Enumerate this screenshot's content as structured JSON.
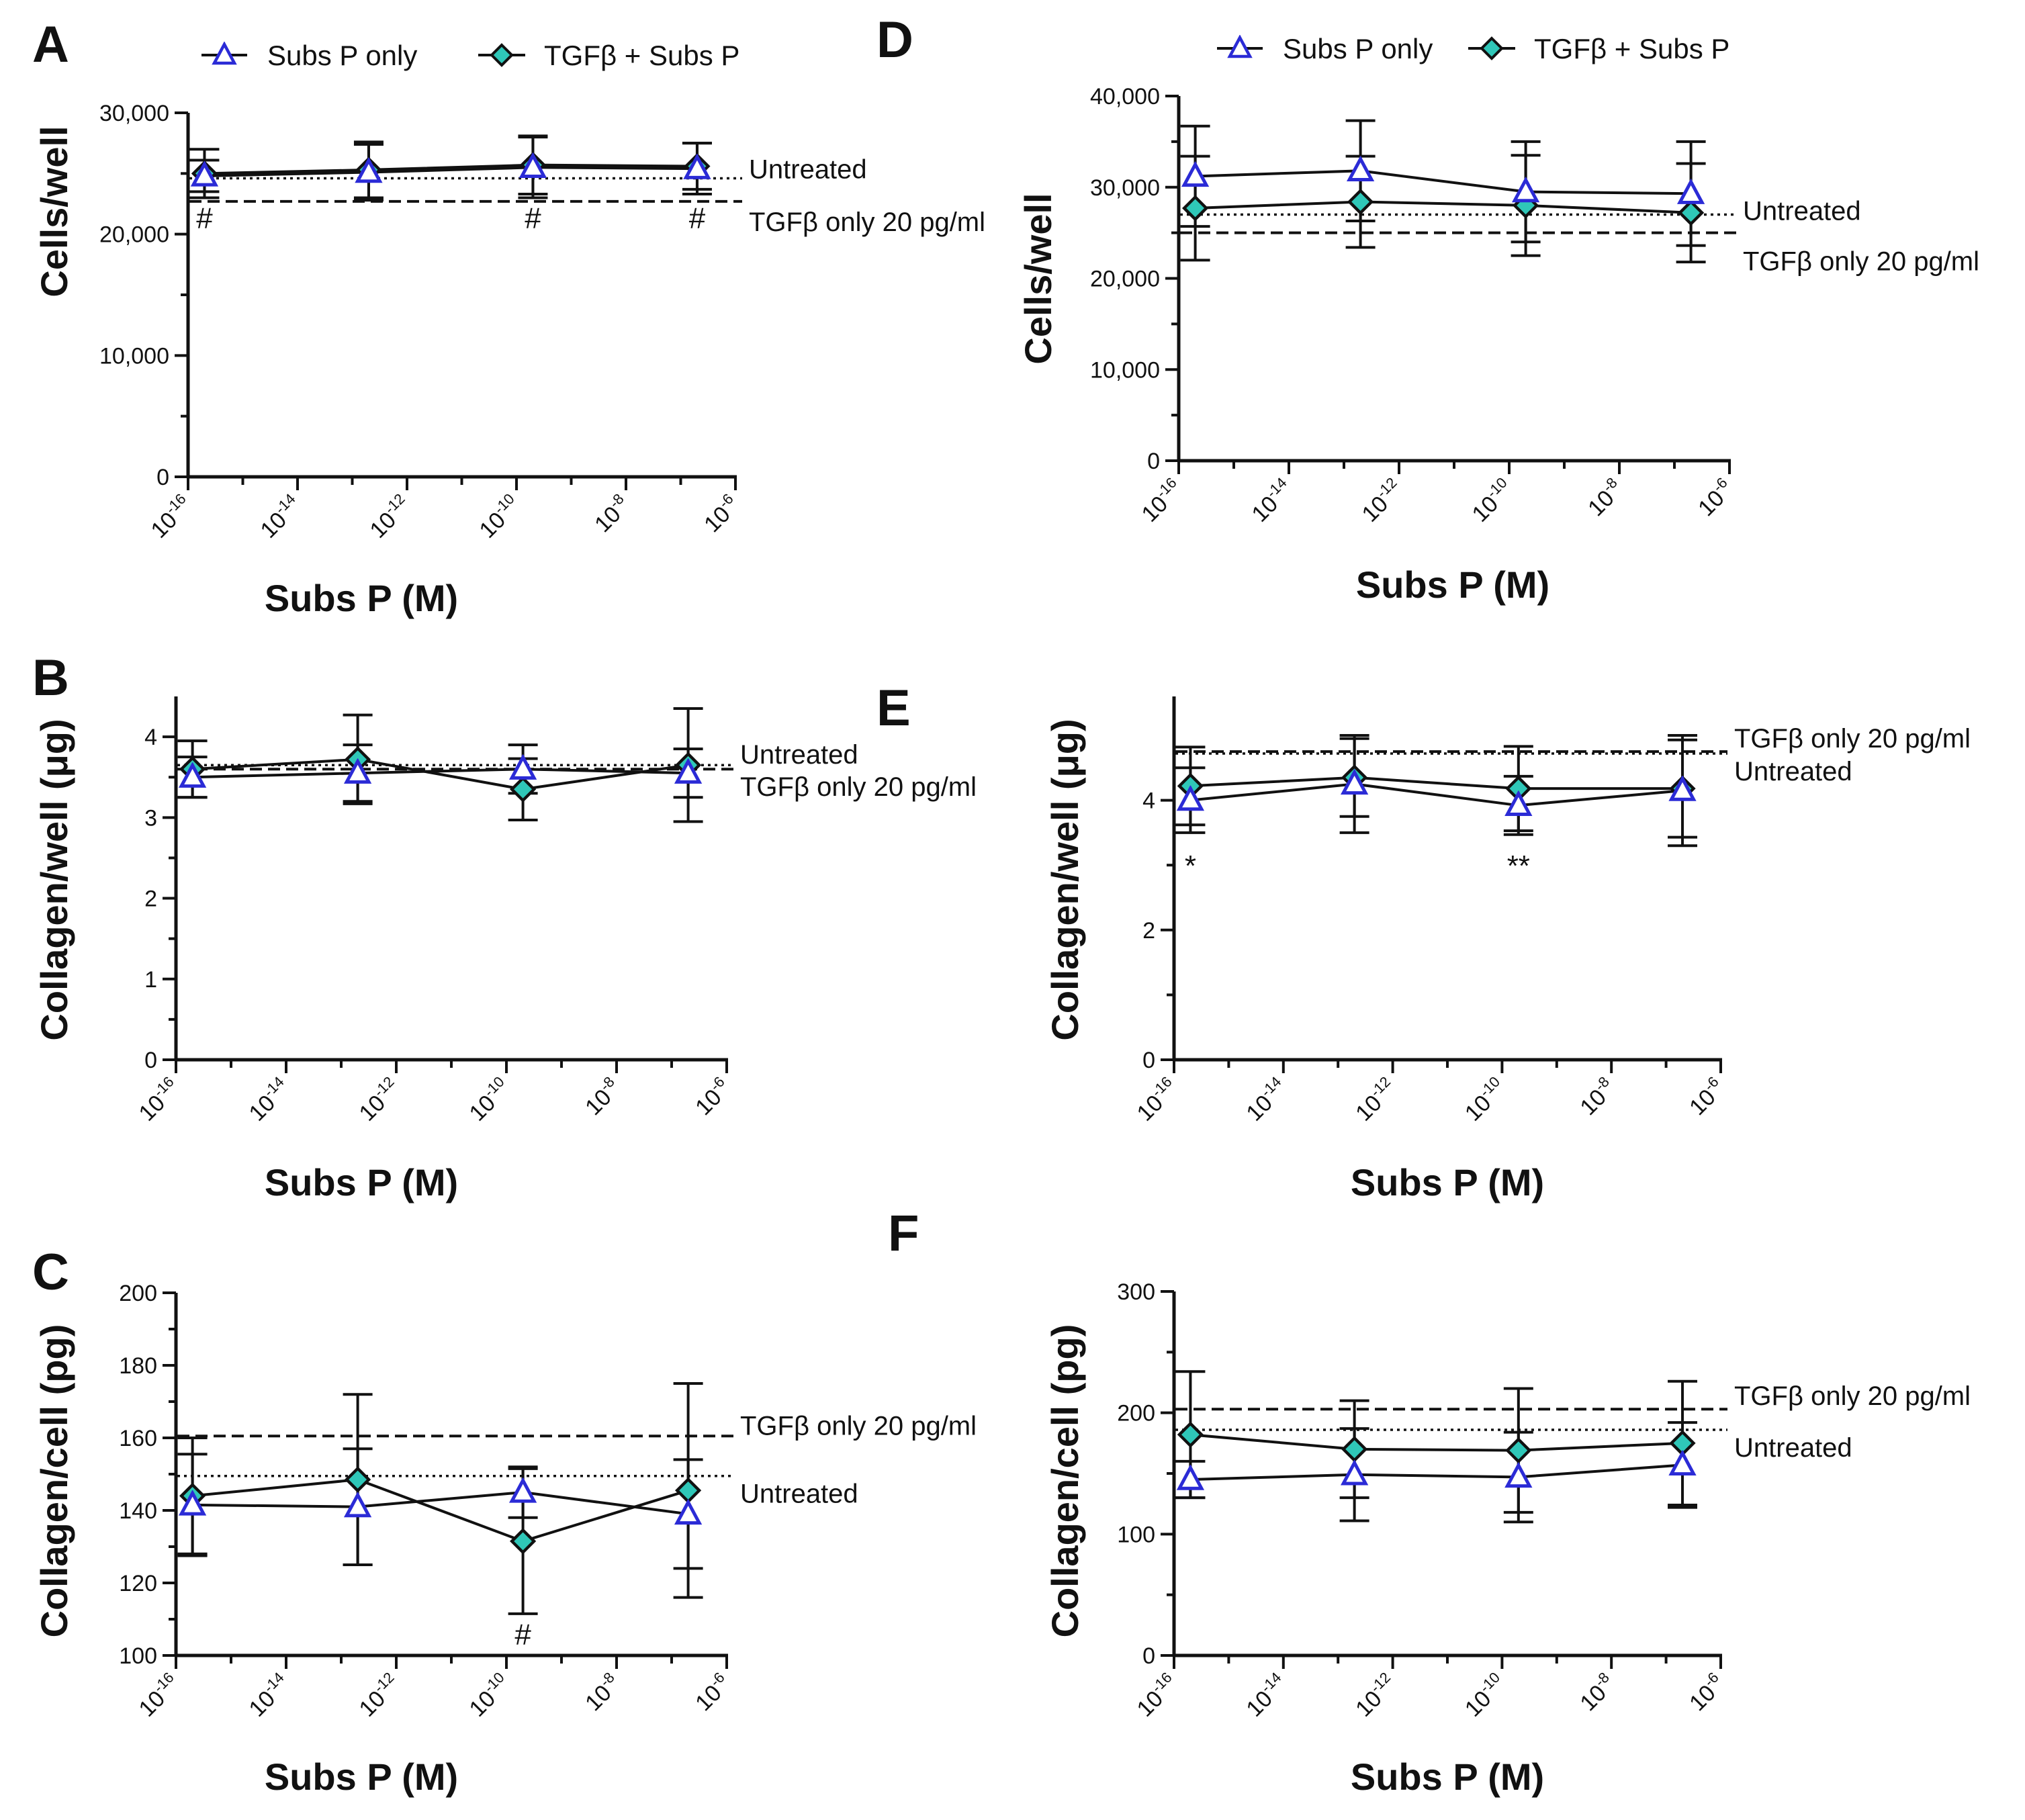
{
  "figure": {
    "legend": {
      "items": [
        {
          "label": "Subs P only",
          "marker": "triangle",
          "color": "#2b2bd6"
        },
        {
          "label": "TGFβ + Subs P",
          "marker": "diamond",
          "color": "#2fc7b8"
        }
      ]
    },
    "colors": {
      "subs_p_stroke": "#2b2bd6",
      "subs_p_fill": "#ffffff",
      "tgf_fill": "#2fc7b8",
      "axis": "#111111"
    }
  },
  "chart_data": [
    {
      "id": "A",
      "type": "line",
      "letter": "A",
      "xlabel": "Subs P (M)",
      "ylabel": "Cells/well",
      "xscale": "log",
      "xlim": [
        -16,
        -6
      ],
      "xticks": [
        {
          "base": "10",
          "exp": "-16"
        },
        {
          "base": "10",
          "exp": "-14"
        },
        {
          "base": "10",
          "exp": "-12"
        },
        {
          "base": "10",
          "exp": "-10"
        },
        {
          "base": "10",
          "exp": "-8"
        },
        {
          "base": "10",
          "exp": "-6"
        }
      ],
      "ylim": [
        0,
        30000
      ],
      "yticks": [
        0,
        10000,
        20000,
        30000
      ],
      "ytick_labels": [
        "0",
        "10,000",
        "20,000",
        "30,000"
      ],
      "x": [
        -15.7,
        -12.7,
        -9.7,
        -6.7
      ],
      "series": [
        {
          "name": "Subs P only",
          "values": [
            24800,
            25100,
            25500,
            25400
          ],
          "err": [
            1300,
            2300,
            2500,
            2100
          ]
        },
        {
          "name": "TGFβ + Subs P",
          "values": [
            25000,
            25300,
            25700,
            25600
          ],
          "err": [
            2000,
            2300,
            2400,
            1900
          ]
        }
      ],
      "refs": [
        {
          "label": "Untreated",
          "value": 24600,
          "style": "dotted"
        },
        {
          "label": "TGFβ only 20 pg/ml",
          "value": 22700,
          "style": "dashed"
        }
      ],
      "annotations": [
        {
          "text": "#",
          "x": -15.7,
          "y": 21400
        },
        {
          "text": "#",
          "x": -9.7,
          "y": 21400
        },
        {
          "text": "#",
          "x": -6.7,
          "y": 21400
        }
      ]
    },
    {
      "id": "B",
      "type": "line",
      "letter": "B",
      "xlabel": "Subs P (M)",
      "ylabel": "Collagen/well (μg)",
      "xscale": "log",
      "xlim": [
        -16,
        -6
      ],
      "xticks": [
        {
          "base": "10",
          "exp": "-16"
        },
        {
          "base": "10",
          "exp": "-14"
        },
        {
          "base": "10",
          "exp": "-12"
        },
        {
          "base": "10",
          "exp": "-10"
        },
        {
          "base": "10",
          "exp": "-8"
        },
        {
          "base": "10",
          "exp": "-6"
        }
      ],
      "ylim": [
        0,
        4.5
      ],
      "yticks": [
        0,
        1,
        2,
        3,
        4
      ],
      "ytick_labels": [
        "0",
        "1",
        "2",
        "3",
        "4"
      ],
      "x": [
        -15.7,
        -12.7,
        -9.7,
        -6.7
      ],
      "series": [
        {
          "name": "Subs P only",
          "values": [
            3.5,
            3.55,
            3.6,
            3.55
          ],
          "err": [
            0.25,
            0.35,
            0.3,
            0.3
          ]
        },
        {
          "name": "TGFβ + Subs P",
          "values": [
            3.6,
            3.72,
            3.35,
            3.65
          ],
          "err": [
            0.35,
            0.55,
            0.38,
            0.7
          ]
        }
      ],
      "refs": [
        {
          "label": "Untreated",
          "value": 3.65,
          "style": "dotted"
        },
        {
          "label": "TGFβ only 20 pg/ml",
          "value": 3.6,
          "style": "dashed"
        }
      ],
      "annotations": []
    },
    {
      "id": "C",
      "type": "line",
      "letter": "C",
      "xlabel": "Subs P (M)",
      "ylabel": "Collagen/cell (pg)",
      "xscale": "log",
      "xlim": [
        -16,
        -6
      ],
      "xticks": [
        {
          "base": "10",
          "exp": "-16"
        },
        {
          "base": "10",
          "exp": "-14"
        },
        {
          "base": "10",
          "exp": "-12"
        },
        {
          "base": "10",
          "exp": "-10"
        },
        {
          "base": "10",
          "exp": "-8"
        },
        {
          "base": "10",
          "exp": "-6"
        }
      ],
      "ylim": [
        100,
        200
      ],
      "yticks": [
        100,
        120,
        140,
        160,
        180,
        200
      ],
      "ytick_labels": [
        "100",
        "120",
        "140",
        "160",
        "180",
        "200"
      ],
      "x": [
        -15.7,
        -12.7,
        -9.7,
        -6.7
      ],
      "series": [
        {
          "name": "Subs P only",
          "values": [
            141.5,
            141,
            145,
            139
          ],
          "err": [
            14,
            16,
            7,
            15
          ]
        },
        {
          "name": "TGFβ + Subs P",
          "values": [
            144,
            148.5,
            131.5,
            145.5
          ],
          "err": [
            16,
            23.5,
            20,
            29.5
          ]
        }
      ],
      "refs": [
        {
          "label": "TGFβ only 20 pg/ml",
          "value": 160.5,
          "style": "dashed"
        },
        {
          "label": "Untreated",
          "value": 149.5,
          "style": "dotted"
        }
      ],
      "annotations": [
        {
          "text": "#",
          "x": -9.7,
          "y": 106
        }
      ]
    },
    {
      "id": "D",
      "type": "line",
      "letter": "D",
      "xlabel": "Subs P (M)",
      "ylabel": "Cells/well",
      "xscale": "log",
      "xlim": [
        -16,
        -6
      ],
      "xticks": [
        {
          "base": "10",
          "exp": "-16"
        },
        {
          "base": "10",
          "exp": "-14"
        },
        {
          "base": "10",
          "exp": "-12"
        },
        {
          "base": "10",
          "exp": "-10"
        },
        {
          "base": "10",
          "exp": "-8"
        },
        {
          "base": "10",
          "exp": "-6"
        }
      ],
      "ylim": [
        0,
        40000
      ],
      "yticks": [
        0,
        10000,
        20000,
        30000,
        40000
      ],
      "ytick_labels": [
        "0",
        "10,000",
        "20,000",
        "30,000",
        "40,000"
      ],
      "x": [
        -15.7,
        -12.7,
        -9.7,
        -6.7
      ],
      "series": [
        {
          "name": "Subs P only",
          "values": [
            31200,
            31800,
            29500,
            29300
          ],
          "err": [
            5500,
            5500,
            5500,
            5700
          ]
        },
        {
          "name": "TGFβ + Subs P",
          "values": [
            27700,
            28400,
            28000,
            27200
          ],
          "err": [
            5700,
            5000,
            5500,
            5400
          ]
        }
      ],
      "refs": [
        {
          "label": "Untreated",
          "value": 27000,
          "style": "dotted"
        },
        {
          "label": "TGFβ only 20 pg/ml",
          "value": 25000,
          "style": "dashed"
        }
      ],
      "annotations": []
    },
    {
      "id": "E",
      "type": "line",
      "letter": "E",
      "xlabel": "Subs P (M)",
      "ylabel": "Collagen/well (μg)",
      "xscale": "log",
      "xlim": [
        -16,
        -6
      ],
      "xticks": [
        {
          "base": "10",
          "exp": "-16"
        },
        {
          "base": "10",
          "exp": "-14"
        },
        {
          "base": "10",
          "exp": "-12"
        },
        {
          "base": "10",
          "exp": "-10"
        },
        {
          "base": "10",
          "exp": "-8"
        },
        {
          "base": "10",
          "exp": "-6"
        }
      ],
      "ylim": [
        0,
        5.6
      ],
      "yticks": [
        0,
        2,
        4
      ],
      "ytick_labels": [
        "0",
        "2",
        "4"
      ],
      "x": [
        -15.7,
        -12.7,
        -9.7,
        -6.7
      ],
      "series": [
        {
          "name": "Subs P only",
          "values": [
            4.0,
            4.25,
            3.92,
            4.15
          ],
          "err": [
            0.5,
            0.75,
            0.45,
            0.85
          ]
        },
        {
          "name": "TGFβ + Subs P",
          "values": [
            4.22,
            4.35,
            4.18,
            4.18
          ],
          "err": [
            0.6,
            0.6,
            0.65,
            0.75
          ]
        }
      ],
      "refs": [
        {
          "label": "TGFβ only 20 pg/ml",
          "value": 4.75,
          "style": "dashed"
        },
        {
          "label": "Untreated",
          "value": 4.72,
          "style": "dotted"
        }
      ],
      "annotations": [
        {
          "text": "*",
          "x": -15.7,
          "y": 3.0
        },
        {
          "text": "**",
          "x": -9.7,
          "y": 3.0
        }
      ]
    },
    {
      "id": "F",
      "type": "line",
      "letter": "F",
      "xlabel": "Subs P (M)",
      "ylabel": "Collagen/cell (pg)",
      "xscale": "log",
      "xlim": [
        -16,
        -6
      ],
      "xticks": [
        {
          "base": "10",
          "exp": "-16"
        },
        {
          "base": "10",
          "exp": "-14"
        },
        {
          "base": "10",
          "exp": "-12"
        },
        {
          "base": "10",
          "exp": "-10"
        },
        {
          "base": "10",
          "exp": "-8"
        },
        {
          "base": "10",
          "exp": "-6"
        }
      ],
      "ylim": [
        0,
        300
      ],
      "yticks": [
        0,
        100,
        200,
        300
      ],
      "ytick_labels": [
        "0",
        "100",
        "200",
        "300"
      ],
      "x": [
        -15.7,
        -12.7,
        -9.7,
        -6.7
      ],
      "series": [
        {
          "name": "Subs P only",
          "values": [
            145,
            149,
            147,
            157
          ],
          "err": [
            15,
            38,
            37,
            35
          ]
        },
        {
          "name": "TGFβ + Subs P",
          "values": [
            182,
            170,
            169,
            175
          ],
          "err": [
            52,
            40,
            51,
            51
          ]
        }
      ],
      "refs": [
        {
          "label": "TGFβ only 20 pg/ml",
          "value": 203,
          "style": "dashed"
        },
        {
          "label": "Untreated",
          "value": 186,
          "style": "dotted"
        }
      ],
      "annotations": []
    }
  ]
}
